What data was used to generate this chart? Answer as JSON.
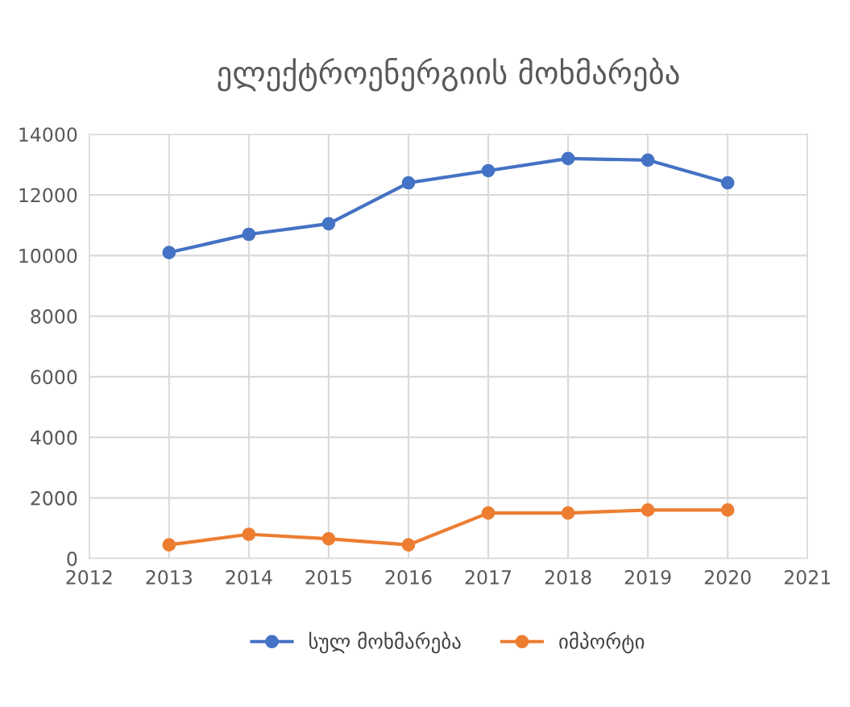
{
  "chart_data": {
    "type": "line",
    "title": "ელექტროენერგიის მოხმარება",
    "x": [
      2013,
      2014,
      2015,
      2016,
      2017,
      2018,
      2019,
      2020
    ],
    "series": [
      {
        "name": "სულ მოხმარება",
        "color": "#4472c4",
        "values": [
          10100,
          10700,
          11050,
          12400,
          12800,
          13200,
          13150,
          12400
        ]
      },
      {
        "name": "იმპორტი",
        "color": "#ed7d31",
        "values": [
          450,
          800,
          650,
          450,
          1500,
          1500,
          1600,
          1600
        ]
      }
    ],
    "xlim": [
      2012,
      2021
    ],
    "xticks": [
      2012,
      2013,
      2014,
      2015,
      2016,
      2017,
      2018,
      2019,
      2020,
      2021
    ],
    "ylim": [
      0,
      14000
    ],
    "yticks": [
      0,
      2000,
      4000,
      6000,
      8000,
      10000,
      12000,
      14000
    ],
    "grid": true,
    "legend": "bottom",
    "marker": "circle",
    "line_style": "solid"
  }
}
